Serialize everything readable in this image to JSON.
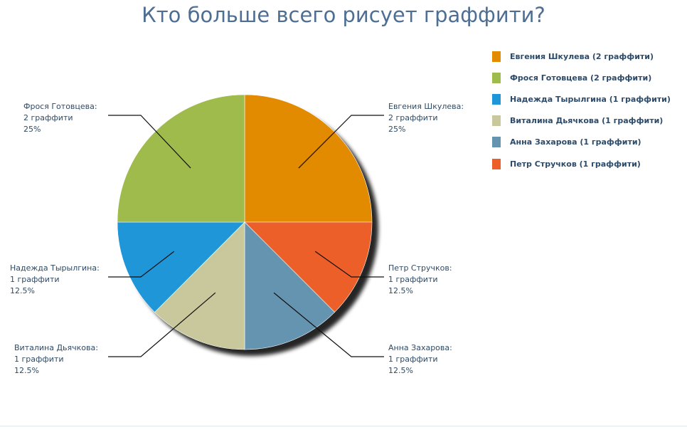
{
  "chart_data": {
    "type": "pie",
    "title": "Кто больше всего рисует граффити?",
    "legend_position": "right",
    "slices": [
      {
        "name": "Евгения Шкулева",
        "value": 2,
        "percent": "25%",
        "callout_name": "Евгения Шкулева:",
        "callout_count": "2 граффити",
        "legend": "Евгения Шкулева (2 граффити)",
        "color": "#e28a00"
      },
      {
        "name": "Петр Стручков",
        "value": 1,
        "percent": "12.5%",
        "callout_name": "Петр Стручков:",
        "callout_count": "1 граффити",
        "legend": "Петр Стручков (1 граффити)",
        "color": "#ec5f28"
      },
      {
        "name": "Анна Захарова",
        "value": 1,
        "percent": "12.5%",
        "callout_name": "Анна Захарова:",
        "callout_count": "1 граффити",
        "legend": "Анна Захарова (1 граффити)",
        "color": "#6594b1"
      },
      {
        "name": "Виталина Дьячкова",
        "value": 1,
        "percent": "12.5%",
        "callout_name": "Виталина Дьячкова:",
        "callout_count": "1 граффити",
        "legend": "Виталина Дьячкова (1 граффити)",
        "color": "#c9c89c"
      },
      {
        "name": "Надежда Тырылгина",
        "value": 1,
        "percent": "12.5%",
        "callout_name": "Надежда Тырылгина:",
        "callout_count": "1 граффити",
        "legend": "Надежда Тырылгина (1 граффити)",
        "color": "#1f96d7"
      },
      {
        "name": "Фрося Готовцева",
        "value": 2,
        "percent": "25%",
        "callout_name": "Фрося Готовцева:",
        "callout_count": "2 граффити",
        "legend": "Фрося Готовцева (2 граффити)",
        "color": "#9fbb4b"
      }
    ],
    "legend_order": [
      0,
      5,
      4,
      3,
      2,
      1
    ]
  }
}
